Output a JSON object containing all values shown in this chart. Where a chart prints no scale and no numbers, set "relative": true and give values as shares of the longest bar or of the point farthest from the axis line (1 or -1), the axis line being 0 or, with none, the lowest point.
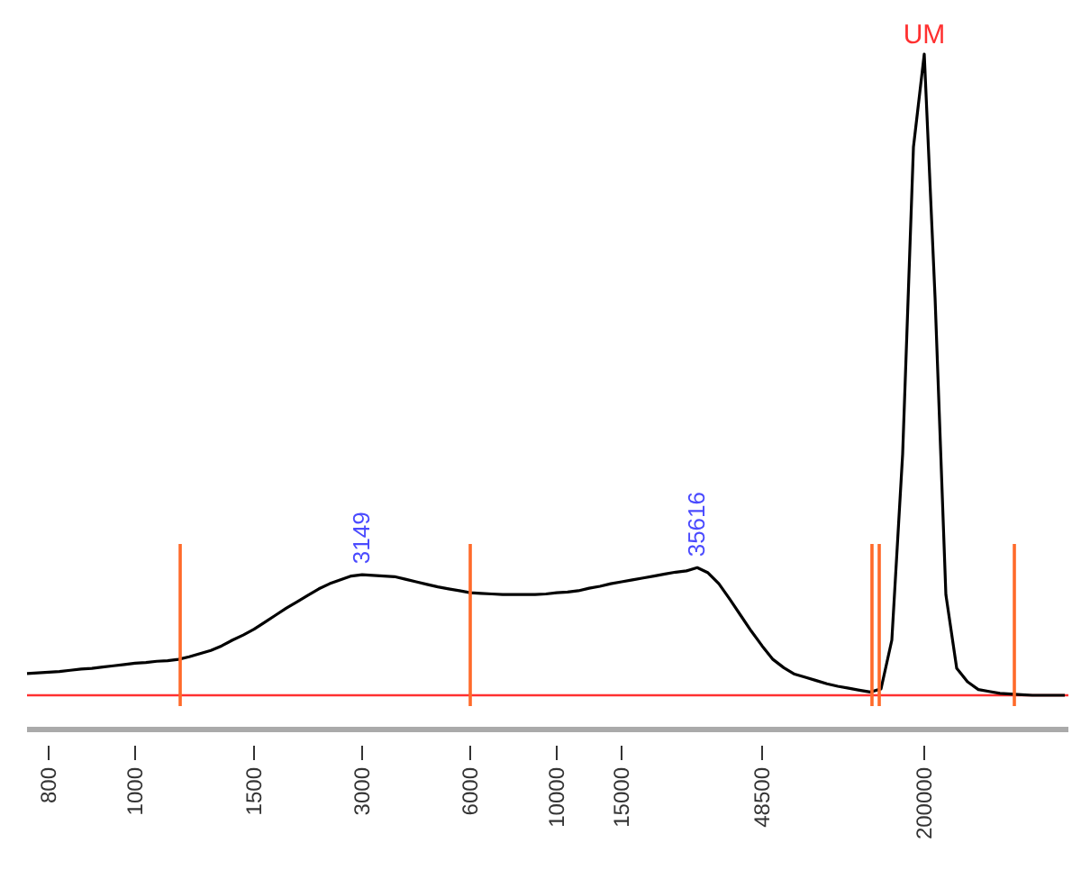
{
  "chart_data": {
    "type": "line",
    "relative": true,
    "categories": [
      null,
      null,
      "800",
      null,
      null,
      null,
      null,
      null,
      null,
      null,
      "1000",
      null,
      null,
      null,
      null,
      null,
      null,
      null,
      null,
      null,
      null,
      "1500",
      null,
      null,
      null,
      null,
      null,
      null,
      null,
      null,
      null,
      "3000",
      null,
      null,
      null,
      null,
      null,
      null,
      null,
      null,
      null,
      "6000",
      null,
      null,
      null,
      null,
      null,
      null,
      null,
      "10000",
      null,
      null,
      null,
      null,
      null,
      "15000",
      null,
      null,
      null,
      null,
      null,
      null,
      null,
      null,
      null,
      null,
      null,
      null,
      "48500",
      null,
      null,
      null,
      null,
      null,
      null,
      null,
      null,
      null,
      null,
      null,
      null,
      null,
      null,
      "200000",
      null,
      null,
      null,
      null,
      null,
      null,
      null,
      null,
      null,
      null,
      null,
      null,
      null
    ],
    "series": [
      {
        "color": "#000000",
        "values": [
          0.034,
          0.035,
          0.036,
          0.037,
          0.039,
          0.041,
          0.042,
          0.044,
          0.046,
          0.048,
          0.05,
          0.051,
          0.053,
          0.054,
          0.056,
          0.06,
          0.065,
          0.07,
          0.077,
          0.086,
          0.094,
          0.103,
          0.114,
          0.125,
          0.136,
          0.146,
          0.156,
          0.166,
          0.174,
          0.18,
          0.186,
          0.188,
          0.187,
          0.186,
          0.185,
          0.181,
          0.177,
          0.173,
          0.169,
          0.166,
          0.163,
          0.16,
          0.159,
          0.158,
          0.157,
          0.157,
          0.157,
          0.157,
          0.158,
          0.16,
          0.161,
          0.163,
          0.167,
          0.17,
          0.174,
          0.177,
          0.18,
          0.183,
          0.186,
          0.189,
          0.192,
          0.194,
          0.199,
          0.191,
          0.174,
          0.15,
          0.125,
          0.1,
          0.077,
          0.056,
          0.043,
          0.033,
          0.028,
          0.023,
          0.018,
          0.014,
          0.011,
          0.008,
          0.005,
          0.01,
          0.086,
          0.376,
          0.855,
          1,
          0.62,
          0.157,
          0.042,
          0.021,
          0.009,
          0.006,
          0.003,
          0.002,
          0.001,
          0,
          0,
          0,
          0
        ]
      }
    ],
    "annotations": [
      "3149",
      "35616",
      "UM"
    ],
    "tick_labels": "x",
    "ref_lines": [
      {
        "axis": "y",
        "value": 0,
        "color": "#ff3030"
      }
    ],
    "marker": "none",
    "line_style": "solid"
  }
}
